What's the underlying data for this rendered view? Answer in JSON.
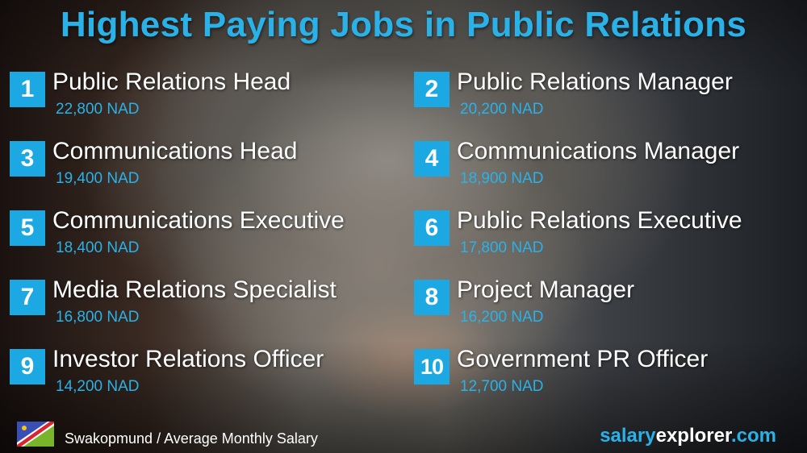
{
  "title": "Highest Paying Jobs in Public Relations",
  "jobs": [
    {
      "rank": "1",
      "title": "Public Relations Head",
      "salary": "22,800 NAD"
    },
    {
      "rank": "2",
      "title": "Public Relations Manager",
      "salary": "20,200 NAD"
    },
    {
      "rank": "3",
      "title": "Communications Head",
      "salary": "19,400 NAD"
    },
    {
      "rank": "4",
      "title": "Communications Manager",
      "salary": "18,900 NAD"
    },
    {
      "rank": "5",
      "title": "Communications Executive",
      "salary": "18,400 NAD"
    },
    {
      "rank": "6",
      "title": "Public Relations Executive",
      "salary": "17,800 NAD"
    },
    {
      "rank": "7",
      "title": "Media Relations Specialist",
      "salary": "16,800 NAD"
    },
    {
      "rank": "8",
      "title": "Project Manager",
      "salary": "16,200 NAD"
    },
    {
      "rank": "9",
      "title": "Investor Relations Officer",
      "salary": "14,200 NAD"
    },
    {
      "rank": "10",
      "title": "Government PR Officer",
      "salary": "12,700 NAD"
    }
  ],
  "footer": {
    "flag_icon": "namibia-flag",
    "location": "Swakopmund / Average Monthly Salary",
    "brand_a": "salary",
    "brand_b": "explorer",
    "brand_c": ".com"
  },
  "colors": {
    "accent": "#2ab2e8",
    "rank_box": "#1ba8e3"
  }
}
